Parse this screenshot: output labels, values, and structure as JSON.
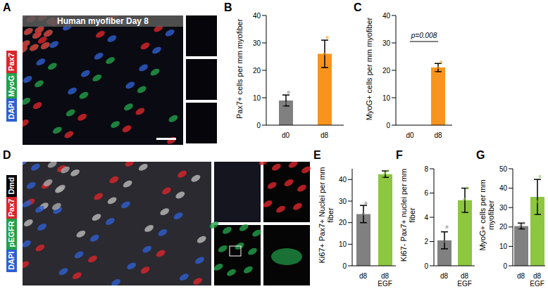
{
  "chart_data": [
    {
      "panel": "B",
      "type": "bar",
      "ylabel": "Pax7+ cells per mm myofiber",
      "categories": [
        "d0",
        "d8"
      ],
      "values": [
        9,
        26
      ],
      "errors": [
        2,
        5
      ],
      "points": [
        [
          7,
          8,
          12
        ],
        [
          20,
          26,
          32
        ]
      ],
      "colors": [
        "#808080",
        "#f7941d"
      ],
      "ylim": [
        0,
        40
      ],
      "yticks": [
        0,
        10,
        20,
        30,
        40
      ]
    },
    {
      "panel": "C",
      "type": "bar",
      "ylabel": "MyoG+ cells per mm myofiber",
      "categories": [
        "d0",
        "d8"
      ],
      "values": [
        0,
        21
      ],
      "errors": [
        0,
        1.5
      ],
      "points": [
        [],
        [
          19,
          21,
          23
        ]
      ],
      "colors": [
        "#808080",
        "#f7941d"
      ],
      "ylim": [
        0,
        40
      ],
      "yticks": [
        0,
        10,
        20,
        30,
        40
      ],
      "annotation": "p=0.008"
    },
    {
      "panel": "E",
      "type": "bar",
      "ylabel": "Ki67+ Pax7+ Nuclei per mm fiber",
      "categories": [
        "d8",
        "d8\nEGF"
      ],
      "values": [
        24,
        42.5
      ],
      "errors": [
        4,
        1.5
      ],
      "points": [
        [
          19,
          24,
          29
        ],
        [
          41,
          43,
          44
        ]
      ],
      "colors": [
        "#808080",
        "#8dc63f"
      ],
      "ylim": [
        0,
        45
      ],
      "yticks": [
        0,
        10,
        20,
        30,
        40
      ]
    },
    {
      "panel": "F",
      "type": "bar",
      "ylabel": "Ki67- Pax7+ nuclei per mm fiber",
      "categories": [
        "d8",
        "d8\nEGF"
      ],
      "values": [
        2.1,
        5.4
      ],
      "errors": [
        0.7,
        1
      ],
      "points": [
        [
          1.2,
          2,
          3.2
        ],
        [
          4.3,
          5.5,
          6.4
        ]
      ],
      "colors": [
        "#808080",
        "#8dc63f"
      ],
      "ylim": [
        0,
        8
      ],
      "yticks": [
        0,
        2,
        4,
        6,
        8
      ]
    },
    {
      "panel": "G",
      "type": "bar",
      "ylabel": "MyoG+ cells per mm myofiber",
      "categories": [
        "d8",
        "d8\nEGF"
      ],
      "values": [
        20.5,
        35.5
      ],
      "errors": [
        1.5,
        9
      ],
      "points": [
        [
          19,
          21,
          22
        ],
        [
          27,
          33,
          46
        ]
      ],
      "colors": [
        "#808080",
        "#8dc63f"
      ],
      "ylim": [
        0,
        50
      ],
      "yticks": [
        0,
        10,
        20,
        30,
        40,
        50
      ]
    }
  ],
  "images": [
    {
      "panel": "A",
      "title": "Human myofiber Day 8",
      "channels": [
        {
          "name": "DAPI",
          "color": "#2f5fd0"
        },
        {
          "name": "MyoG",
          "color": "#22a04a"
        },
        {
          "name": "Pax7",
          "color": "#d9262a"
        }
      ]
    },
    {
      "panel": "D",
      "channels": [
        {
          "name": "DAPI",
          "color": "#2f5fd0"
        },
        {
          "name": "pEGFR",
          "color": "#22a04a"
        },
        {
          "name": "Pax7",
          "color": "#d9262a"
        },
        {
          "name": "Dmd",
          "color": "#000000"
        }
      ]
    }
  ]
}
